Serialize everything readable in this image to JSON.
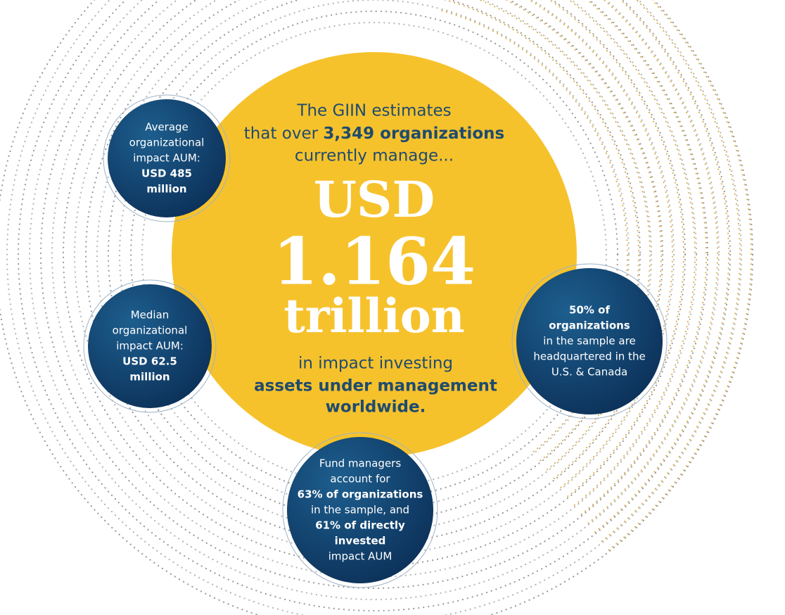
{
  "center": {
    "intro": [
      {
        "text": "The GIIN estimates",
        "bold": false
      },
      {
        "text": "that over",
        "bold": false,
        "suffix": "3,349 organizations"
      },
      {
        "text": "currently manage...",
        "bold": false
      }
    ],
    "headline": [
      "USD",
      "1.164",
      "trillion"
    ],
    "outro": [
      {
        "text": "in impact investing",
        "bold": false
      },
      {
        "text": "assets under management",
        "bold": true
      },
      {
        "text": "worldwide.",
        "bold": true
      }
    ]
  },
  "bubbles": [
    {
      "lines": [
        {
          "text": "Average",
          "bold": false
        },
        {
          "text": "organizational",
          "bold": false
        },
        {
          "text": "impact AUM:",
          "bold": false
        },
        {
          "text": "USD 485",
          "bold": true
        },
        {
          "text": "million",
          "bold": true
        }
      ]
    },
    {
      "lines": [
        {
          "text": "Median",
          "bold": false
        },
        {
          "text": "organizational",
          "bold": false
        },
        {
          "text": "impact AUM:",
          "bold": false
        },
        {
          "text": "USD 62.5",
          "bold": true
        },
        {
          "text": "million",
          "bold": true
        }
      ]
    },
    {
      "lines": [
        {
          "text": "50% of",
          "bold": true
        },
        {
          "text": "organizations",
          "bold": true
        },
        {
          "text": "in the sample are",
          "bold": false
        },
        {
          "text": "headquartered in the",
          "bold": false
        },
        {
          "text": "U.S. & Canada",
          "bold": false
        }
      ]
    },
    {
      "lines": [
        {
          "text": "Fund managers",
          "bold": false
        },
        {
          "text": "account for",
          "bold": false
        },
        {
          "text": "63% of organizations",
          "bold": true
        },
        {
          "text": "in the sample, and",
          "bold": false
        },
        {
          "text": "61% of directly",
          "bold": true
        },
        {
          "text": "invested",
          "bold": true
        },
        {
          "text": "impact AUM",
          "bold": false
        }
      ]
    }
  ]
}
